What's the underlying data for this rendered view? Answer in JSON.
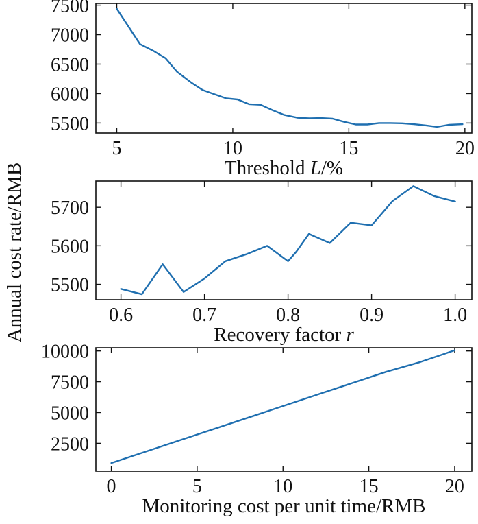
{
  "shared_ylabel": "Annual cost rate/RMB",
  "series_color": "#1f6fb0",
  "chart_data": [
    {
      "type": "line",
      "xlabel_parts": [
        {
          "text": "Threshold ",
          "italic": false
        },
        {
          "text": "L",
          "italic": true
        },
        {
          "text": "/%",
          "italic": false
        }
      ],
      "xlim": [
        4.1,
        20.3
      ],
      "ylim": [
        5330,
        7530
      ],
      "xticks": [
        5,
        10,
        15,
        20
      ],
      "xtick_labels": [
        "5",
        "10",
        "15",
        "20"
      ],
      "yticks": [
        5500,
        6000,
        6500,
        7000,
        7500
      ],
      "ytick_labels": [
        "5500",
        "6000",
        "6500",
        "7000",
        "7500"
      ],
      "x": [
        5,
        6,
        6.6,
        7.1,
        7.6,
        8.2,
        8.7,
        9.2,
        9.7,
        10.2,
        10.7,
        11.2,
        11.7,
        12.2,
        12.8,
        13.3,
        13.8,
        14.3,
        14.8,
        15.3,
        15.8,
        16.3,
        16.8,
        17.3,
        17.8,
        18.3,
        18.8,
        19.3,
        19.9
      ],
      "y": [
        7440,
        6840,
        6720,
        6600,
        6370,
        6190,
        6060,
        5990,
        5920,
        5900,
        5820,
        5810,
        5720,
        5640,
        5590,
        5580,
        5585,
        5575,
        5520,
        5475,
        5475,
        5500,
        5500,
        5495,
        5480,
        5460,
        5435,
        5470,
        5480
      ]
    },
    {
      "type": "line",
      "xlabel_parts": [
        {
          "text": "Recovery factor ",
          "italic": false
        },
        {
          "text": "r",
          "italic": true
        }
      ],
      "xlim": [
        0.57,
        1.02
      ],
      "ylim": [
        5460,
        5768
      ],
      "xticks": [
        0.6,
        0.7,
        0.8,
        0.9,
        1.0
      ],
      "xtick_labels": [
        "0.6",
        "0.7",
        "0.8",
        "0.9",
        "1.0"
      ],
      "yticks": [
        5500,
        5600,
        5700
      ],
      "ytick_labels": [
        "5500",
        "5600",
        "5700"
      ],
      "x": [
        0.6,
        0.625,
        0.65,
        0.675,
        0.7,
        0.725,
        0.75,
        0.775,
        0.8,
        0.81,
        0.825,
        0.85,
        0.875,
        0.9,
        0.925,
        0.95,
        0.975,
        1.0
      ],
      "y": [
        5488,
        5474,
        5552,
        5480,
        5515,
        5560,
        5578,
        5600,
        5560,
        5585,
        5631,
        5607,
        5660,
        5653,
        5716,
        5755,
        5729,
        5715
      ]
    },
    {
      "type": "line",
      "xlabel_parts": [
        {
          "text": "Monitoring cost per unit time/RMB",
          "italic": false
        }
      ],
      "xlim": [
        -0.9,
        21.0
      ],
      "ylim": [
        240,
        10260
      ],
      "xticks": [
        0,
        5,
        10,
        15,
        20
      ],
      "xtick_labels": [
        "0",
        "5",
        "10",
        "15",
        "20"
      ],
      "yticks": [
        2500,
        5000,
        7500,
        10000
      ],
      "ytick_labels": [
        "2500",
        "5000",
        "7500",
        "10000"
      ],
      "x": [
        0,
        4,
        8,
        12,
        16,
        18,
        20
      ],
      "y": [
        900,
        2750,
        4600,
        6450,
        8300,
        9100,
        10050
      ]
    }
  ]
}
